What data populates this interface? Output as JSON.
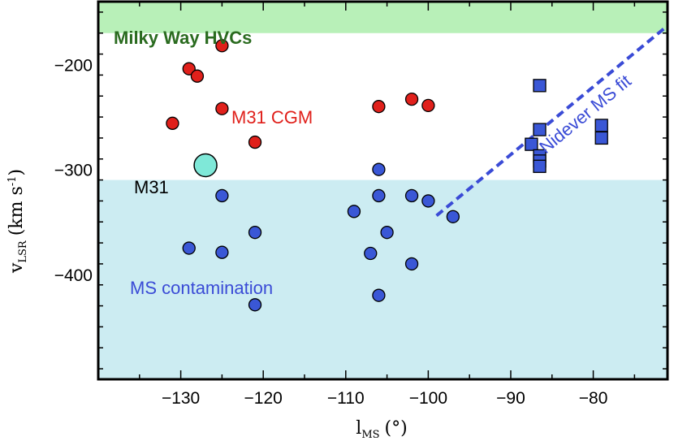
{
  "chart_data": {
    "type": "scatter",
    "xlabel": {
      "main": "l",
      "sub": "MS",
      "unit": "(°)"
    },
    "ylabel": {
      "main": "v",
      "sub": "LSR",
      "unit_pre": "(km s",
      "unit_sup": "-1",
      "unit_post": ")"
    },
    "xlim": [
      -140,
      -71
    ],
    "ylim": [
      -500,
      -140
    ],
    "x_ticks": [
      -130,
      -120,
      -110,
      -100,
      -90,
      -80
    ],
    "y_ticks": [
      -200,
      -300,
      -400
    ],
    "regions": [
      {
        "name": "milky-way-hvcs",
        "label": "Milky Way HVCs",
        "y_range": [
          -170,
          -140
        ],
        "color": "#b8f0b8",
        "label_color": "#2a6b1f"
      },
      {
        "name": "ms-contamination",
        "label": "MS contamination",
        "y_range": [
          -500,
          -310
        ],
        "color": "#ccecf2",
        "label_color": "#3a4bd6"
      }
    ],
    "annotations": [
      {
        "name": "m31-cgm-label",
        "text": "M31 CGM",
        "color": "#e0201b"
      },
      {
        "name": "m31-label",
        "text": "M31",
        "color": "#000000"
      },
      {
        "name": "nidever-label",
        "text": "Nidever MS fit",
        "color": "#3a4bd6"
      }
    ],
    "m31": {
      "x": -127,
      "y": -296,
      "color": "#7fe8d8"
    },
    "series": [
      {
        "name": "M31 CGM",
        "marker": "circle",
        "color": "#e0201b",
        "points": [
          [
            -125,
            -182
          ],
          [
            -129,
            -204
          ],
          [
            -128,
            -211
          ],
          [
            -131,
            -256
          ],
          [
            -125,
            -242
          ],
          [
            -121,
            -274
          ],
          [
            -106,
            -240
          ],
          [
            -102,
            -233
          ],
          [
            -100,
            -239
          ]
        ]
      },
      {
        "name": "MS contamination",
        "marker": "circle",
        "color": "#3a57d6",
        "points": [
          [
            -125,
            -325
          ],
          [
            -121,
            -360
          ],
          [
            -125,
            -379
          ],
          [
            -129,
            -375
          ],
          [
            -121,
            -429
          ],
          [
            -106,
            -300
          ],
          [
            -106,
            -325
          ],
          [
            -102,
            -325
          ],
          [
            -100,
            -330
          ],
          [
            -109,
            -340
          ],
          [
            -105,
            -360
          ],
          [
            -107,
            -380
          ],
          [
            -102,
            -390
          ],
          [
            -106,
            -420
          ],
          [
            -97,
            -345
          ]
        ]
      },
      {
        "name": "Magellanic Stream",
        "marker": "square",
        "color": "#3a57d6",
        "points": [
          [
            -86.5,
            -220
          ],
          [
            -86.5,
            -262
          ],
          [
            -87.5,
            -276
          ],
          [
            -86.5,
            -287
          ],
          [
            -86.5,
            -292
          ],
          [
            -86.5,
            -297
          ],
          [
            -79,
            -258
          ],
          [
            -79,
            -270
          ]
        ]
      }
    ],
    "fit_line": {
      "name": "Nidever MS fit",
      "color": "#3a4bd6",
      "points": [
        [
          -99,
          -344
        ],
        [
          -71,
          -163
        ]
      ]
    }
  }
}
